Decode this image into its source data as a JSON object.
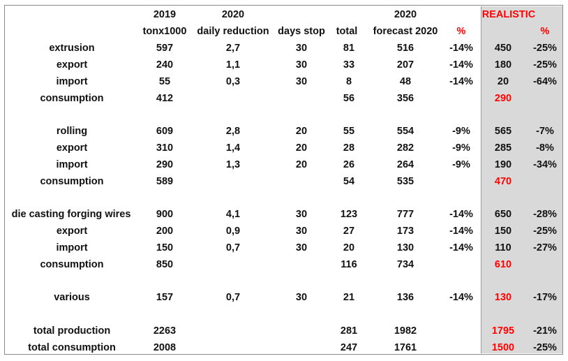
{
  "colors": {
    "highlight": "#ff0000",
    "shaded_column": "#d9d9d9"
  },
  "header1": {
    "year_2019": "2019",
    "year_2020": "2020",
    "year_2020_forecast": "2020",
    "realistic": "REALISTIC"
  },
  "header2": {
    "tonx1000": "tonx1000",
    "daily_reduction": "daily reduction",
    "days_stop": "days stop",
    "total": "total",
    "forecast": "forecast 2020",
    "pct": "%",
    "realistic_pct": "%"
  },
  "rows": [
    {
      "label": "extrusion",
      "y2019": "597",
      "daily": "2,7",
      "days": "30",
      "total": "81",
      "forecast": "516",
      "pct": "-14%",
      "realistic": "450",
      "realistic_pct": "-25%"
    },
    {
      "label": "export",
      "y2019": "240",
      "daily": "1,1",
      "days": "30",
      "total": "33",
      "forecast": "207",
      "pct": "-14%",
      "realistic": "180",
      "realistic_pct": "-25%"
    },
    {
      "label": "import",
      "y2019": "55",
      "daily": "0,3",
      "days": "30",
      "total": "8",
      "forecast": "48",
      "pct": "-14%",
      "realistic": "20",
      "realistic_pct": "-64%"
    },
    {
      "label": "consumption",
      "y2019": "412",
      "daily": "",
      "days": "",
      "total": "56",
      "forecast": "356",
      "pct": "",
      "realistic": "290",
      "realistic_pct": "",
      "realistic_red": true
    },
    {
      "label": "rolling",
      "y2019": "609",
      "daily": "2,8",
      "days": "20",
      "total": "55",
      "forecast": "554",
      "pct": "-9%",
      "realistic": "565",
      "realistic_pct": "-7%"
    },
    {
      "label": "export",
      "y2019": "310",
      "daily": "1,4",
      "days": "20",
      "total": "28",
      "forecast": "282",
      "pct": "-9%",
      "realistic": "285",
      "realistic_pct": "-8%"
    },
    {
      "label": "import",
      "y2019": "290",
      "daily": "1,3",
      "days": "20",
      "total": "26",
      "forecast": "264",
      "pct": "-9%",
      "realistic": "190",
      "realistic_pct": "-34%"
    },
    {
      "label": "consumption",
      "y2019": "589",
      "daily": "",
      "days": "",
      "total": "54",
      "forecast": "535",
      "pct": "",
      "realistic": "470",
      "realistic_pct": "",
      "realistic_red": true
    },
    {
      "label": "die casting forging wires",
      "y2019": "900",
      "daily": "4,1",
      "days": "30",
      "total": "123",
      "forecast": "777",
      "pct": "-14%",
      "realistic": "650",
      "realistic_pct": "-28%"
    },
    {
      "label": "export",
      "y2019": "200",
      "daily": "0,9",
      "days": "30",
      "total": "27",
      "forecast": "173",
      "pct": "-14%",
      "realistic": "150",
      "realistic_pct": "-25%"
    },
    {
      "label": "import",
      "y2019": "150",
      "daily": "0,7",
      "days": "30",
      "total": "20",
      "forecast": "130",
      "pct": "-14%",
      "realistic": "110",
      "realistic_pct": "-27%"
    },
    {
      "label": "consumption",
      "y2019": "850",
      "daily": "",
      "days": "",
      "total": "116",
      "forecast": "734",
      "pct": "",
      "realistic": "610",
      "realistic_pct": "",
      "realistic_red": true
    },
    {
      "label": "various",
      "y2019": "157",
      "daily": "0,7",
      "days": "30",
      "total": "21",
      "forecast": "136",
      "pct": "-14%",
      "realistic": "130",
      "realistic_pct": "-17%",
      "realistic_red": true
    },
    {
      "label": "total production",
      "y2019": "2263",
      "daily": "",
      "days": "",
      "total": "281",
      "forecast": "1982",
      "pct": "",
      "realistic": "1795",
      "realistic_pct": "-21%",
      "realistic_red": true
    },
    {
      "label": "total consumption",
      "y2019": "2008",
      "daily": "",
      "days": "",
      "total": "247",
      "forecast": "1761",
      "pct": "",
      "realistic": "1500",
      "realistic_pct": "-25%",
      "realistic_red": true
    }
  ]
}
